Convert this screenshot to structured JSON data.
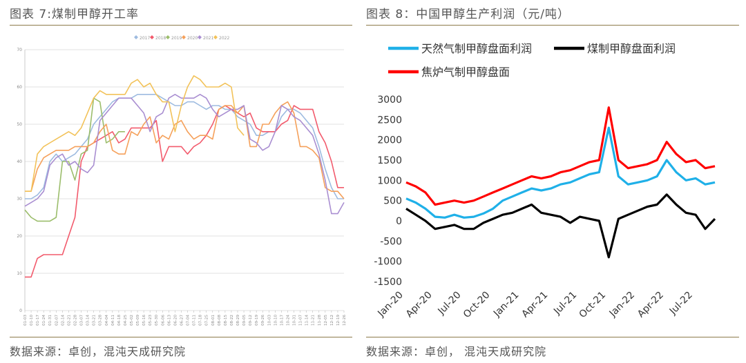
{
  "left": {
    "title": "图表 7:煤制甲醇开工率",
    "source": "数据来源：卓创，混沌天成研究院"
  },
  "right": {
    "title": "图表 8：中国甲醇生产利润（元/吨）",
    "source": "数据来源：卓创， 混沌天成研究院"
  },
  "chart_data": [
    {
      "type": "line",
      "title": "",
      "x": [
        "01-03",
        "01-10",
        "01-17",
        "01-24",
        "01-31",
        "02-07",
        "02-14",
        "02-21",
        "02-28",
        "03-07",
        "03-14",
        "03-21",
        "03-28",
        "04-04",
        "04-11",
        "04-18",
        "04-25",
        "05-02",
        "05-09",
        "05-16",
        "05-23",
        "05-30",
        "06-06",
        "06-13",
        "06-20",
        "06-27",
        "07-04",
        "07-11",
        "07-18",
        "07-25",
        "08-01",
        "08-08",
        "08-15",
        "08-22",
        "08-29",
        "09-05",
        "09-12",
        "09-19",
        "09-26",
        "10-03",
        "10-10",
        "10-17",
        "10-24",
        "10-31",
        "11-07",
        "11-14",
        "11-21",
        "11-28",
        "12-05",
        "12-12",
        "12-19",
        "12-26"
      ],
      "ylim": [
        0,
        70
      ],
      "yticks": [
        0,
        10,
        20,
        30,
        40,
        50,
        60,
        70
      ],
      "grid": true,
      "legend_position": "top",
      "series": [
        {
          "name": "2017",
          "color": "#9dbbe0",
          "values": [
            30,
            30,
            31,
            33,
            40,
            42,
            40,
            41,
            42,
            44,
            46,
            50,
            52,
            54,
            56,
            57,
            57,
            57,
            58,
            58,
            58,
            58,
            57,
            56,
            55,
            55,
            56,
            56,
            55,
            54,
            55,
            55,
            54,
            54,
            52,
            51,
            50,
            47,
            47,
            48,
            48,
            52,
            54,
            54,
            53,
            51,
            49,
            44,
            38,
            33,
            30,
            30
          ]
        },
        {
          "name": "2018",
          "color": "#f25a6c",
          "values": [
            9,
            9,
            14,
            15,
            15,
            15,
            15,
            20,
            25,
            40,
            44,
            45,
            46,
            47,
            48,
            45,
            46,
            49,
            49,
            49,
            49,
            51,
            40,
            44,
            44,
            44,
            42,
            44,
            45,
            47,
            50,
            54,
            55,
            54,
            53,
            52,
            53,
            49,
            48,
            48,
            48,
            50,
            51,
            55,
            54,
            54,
            54,
            48,
            45,
            40,
            33,
            33
          ]
        },
        {
          "name": "2019",
          "color": "#9bbd6b",
          "values": [
            27,
            25,
            24,
            24,
            24,
            25,
            40,
            40,
            35,
            42,
            43,
            57,
            56,
            45,
            46,
            48,
            48,
            null,
            null,
            null,
            null,
            null,
            null,
            null,
            null,
            null,
            null,
            null,
            null,
            null,
            null,
            null,
            null,
            null,
            null,
            null,
            null,
            null,
            null,
            null,
            null,
            null,
            null,
            null,
            null,
            null,
            null,
            null,
            null,
            null,
            null,
            null
          ]
        },
        {
          "name": "2020",
          "color": "#f5a05a",
          "values": [
            32,
            32,
            38,
            41,
            42,
            43,
            43,
            43,
            44,
            44,
            44,
            45,
            48,
            50,
            43,
            42,
            42,
            48,
            47,
            50,
            52,
            45,
            47,
            46,
            50,
            51,
            48,
            46,
            47,
            47,
            46,
            54,
            55,
            55,
            53,
            55,
            44,
            44,
            50,
            50,
            53,
            55,
            56,
            53,
            44,
            44,
            43,
            41,
            33,
            32,
            32,
            30
          ]
        },
        {
          "name": "2021",
          "color": "#a98ed1",
          "values": [
            28,
            29,
            30,
            32,
            39,
            41,
            42,
            39,
            40,
            38,
            37,
            39,
            51,
            53,
            55,
            57,
            57,
            57,
            55,
            53,
            48,
            52,
            53,
            57,
            58,
            57,
            57,
            57,
            58,
            57,
            54,
            52,
            53,
            54,
            54,
            55,
            46,
            45,
            43,
            44,
            48,
            55,
            54,
            52,
            51,
            49,
            47,
            42,
            35,
            26,
            26,
            29
          ]
        },
        {
          "name": "2022",
          "color": "#f2c259",
          "values": [
            32,
            32,
            42,
            44,
            45,
            46,
            47,
            48,
            47,
            49,
            53,
            57,
            59,
            58,
            58,
            58,
            58,
            61,
            62,
            60,
            61,
            58,
            56,
            56,
            48,
            55,
            60,
            63,
            62,
            60,
            60,
            60,
            61,
            60,
            49,
            47,
            null,
            null,
            null,
            null,
            null,
            null,
            null,
            null,
            null,
            null,
            null,
            null,
            null,
            null,
            null,
            null
          ]
        }
      ]
    },
    {
      "type": "line",
      "title": "",
      "xlabel": "",
      "ylabel": "",
      "ylim": [
        -1500,
        3000
      ],
      "yticks": [
        -1500,
        -1000,
        -500,
        0,
        500,
        1000,
        1500,
        2000,
        2500,
        3000
      ],
      "x_ticks": [
        "Jan-20",
        "Apr-20",
        "Jul-20",
        "Oct-20",
        "Jan-21",
        "Apr-21",
        "Jul-21",
        "Oct-21",
        "Jan-22",
        "Apr-22",
        "Jul-22"
      ],
      "x": [
        "2020-01",
        "2020-02",
        "2020-03",
        "2020-04",
        "2020-05",
        "2020-06",
        "2020-07",
        "2020-08",
        "2020-09",
        "2020-10",
        "2020-11",
        "2020-12",
        "2021-01",
        "2021-02",
        "2021-03",
        "2021-04",
        "2021-05",
        "2021-06",
        "2021-07",
        "2021-08",
        "2021-09",
        "2021-10",
        "2021-11",
        "2021-12",
        "2022-01",
        "2022-02",
        "2022-03",
        "2022-04",
        "2022-05",
        "2022-06",
        "2022-07",
        "2022-08",
        "2022-09"
      ],
      "grid": false,
      "legend_position": "top",
      "series": [
        {
          "name": "天然气制甲醇盘面利润",
          "color": "#1fb0e8",
          "values": [
            550,
            450,
            300,
            100,
            80,
            150,
            80,
            100,
            180,
            300,
            500,
            600,
            700,
            800,
            750,
            800,
            900,
            950,
            1050,
            1150,
            1200,
            2300,
            1100,
            900,
            950,
            1000,
            1100,
            1500,
            1200,
            1000,
            1050,
            900,
            950
          ]
        },
        {
          "name": "煤制甲醇盘面利润",
          "color": "#000000",
          "values": [
            300,
            150,
            0,
            -200,
            -150,
            -100,
            -200,
            -200,
            -50,
            50,
            150,
            200,
            300,
            400,
            200,
            150,
            100,
            -50,
            100,
            50,
            0,
            -900,
            50,
            150,
            250,
            350,
            400,
            650,
            400,
            200,
            150,
            -200,
            50
          ]
        },
        {
          "name": "焦炉气制甲醇盘面",
          "color": "#ff0000",
          "values": [
            950,
            850,
            700,
            400,
            450,
            500,
            450,
            500,
            600,
            700,
            800,
            900,
            1000,
            1100,
            1050,
            1100,
            1200,
            1250,
            1350,
            1450,
            1500,
            2800,
            1500,
            1300,
            1350,
            1400,
            1500,
            1950,
            1650,
            1450,
            1500,
            1300,
            1350
          ]
        }
      ]
    }
  ]
}
